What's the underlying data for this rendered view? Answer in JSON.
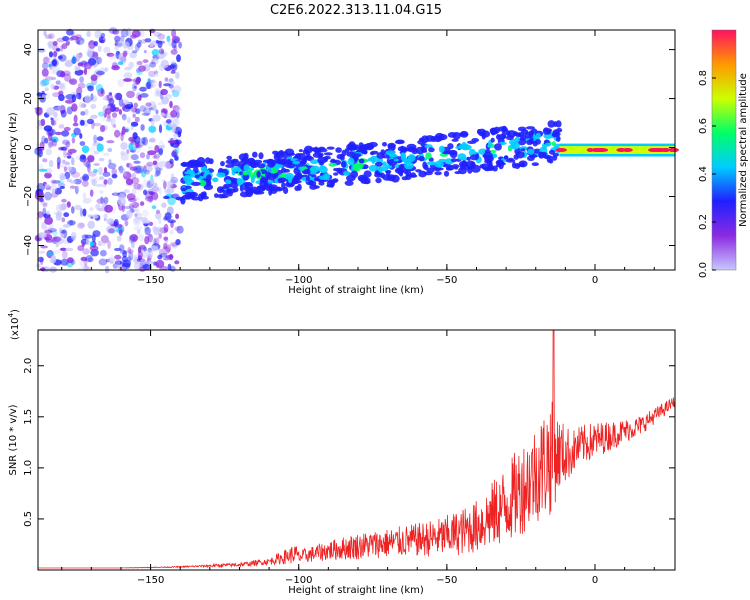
{
  "figure": {
    "title": "C2E6.2022.313.11.04.G15"
  },
  "chart_data": [
    {
      "type": "heatmap",
      "xlabel": "Height of straight line (km)",
      "ylabel": "Frequency (Hz)",
      "xlim": [
        -188,
        27
      ],
      "ylim": [
        -50,
        48
      ],
      "xticks": [
        -150,
        -100,
        -50,
        0
      ],
      "yticks": [
        -40,
        -20,
        0,
        20,
        40
      ],
      "colorbar": {
        "label": "Normalized spectral amplitude",
        "range": [
          0,
          1
        ],
        "ticks": [
          "0.0",
          "0.2",
          "0.4",
          "0.6",
          "0.8"
        ],
        "colors": [
          "#c8c8ff",
          "#8a2be2",
          "#2020ff",
          "#00ccff",
          "#00ff66",
          "#ccff00",
          "#ff9900",
          "#ff1060"
        ]
      },
      "features": [
        {
          "region": "noise",
          "x": [
            -188,
            -140
          ],
          "freq": [
            -50,
            48
          ],
          "amplitude": 0.15
        },
        {
          "region": "signal",
          "x": [
            -140,
            -12
          ],
          "freq_start": -14,
          "freq_end": 2,
          "amplitude": 0.4
        },
        {
          "region": "strong-signal",
          "x": [
            -12,
            27
          ],
          "freq": [
            -2,
            0
          ],
          "amplitude": 0.9
        }
      ]
    },
    {
      "type": "line",
      "xlabel": "Height of straight line (km)",
      "ylabel": "SNR (10 * v/v)",
      "yscale_label": "(x10",
      "yscale_exponent": "4",
      "yscale_close": ")",
      "xlim": [
        -188,
        27
      ],
      "ylim": [
        0,
        2.35
      ],
      "xticks": [
        -150,
        -100,
        -50,
        0
      ],
      "yticks": [
        "0.5",
        "1.0",
        "1.5",
        "2.0"
      ],
      "series": [
        {
          "color": "#ee2222",
          "x": [
            -188,
            -160,
            -140,
            -120,
            -110,
            -101,
            -100,
            -90,
            -80,
            -70,
            -60,
            -52,
            -45,
            -40,
            -35,
            -30,
            -25,
            -20,
            -15,
            -12,
            -8,
            -5,
            0,
            5,
            10,
            15,
            20,
            25,
            27
          ],
          "y": [
            0.02,
            0.02,
            0.03,
            0.05,
            0.08,
            0.15,
            0.12,
            0.18,
            0.22,
            0.25,
            0.28,
            0.3,
            0.35,
            0.4,
            0.5,
            0.6,
            0.75,
            0.9,
            1.05,
            1.1,
            1.12,
            1.2,
            1.25,
            1.3,
            1.35,
            1.4,
            1.5,
            1.6,
            1.65
          ],
          "spread": [
            0,
            0,
            0.01,
            0.03,
            0.05,
            0.15,
            0.1,
            0.15,
            0.2,
            0.22,
            0.25,
            0.3,
            0.35,
            0.4,
            0.5,
            0.6,
            0.7,
            0.75,
            0.9,
            0.55,
            0.35,
            0.3,
            0.28,
            0.22,
            0.18,
            0.15,
            0.12,
            0.1,
            0.08
          ],
          "peak": {
            "x": -14,
            "y": 2.35
          }
        }
      ]
    }
  ]
}
